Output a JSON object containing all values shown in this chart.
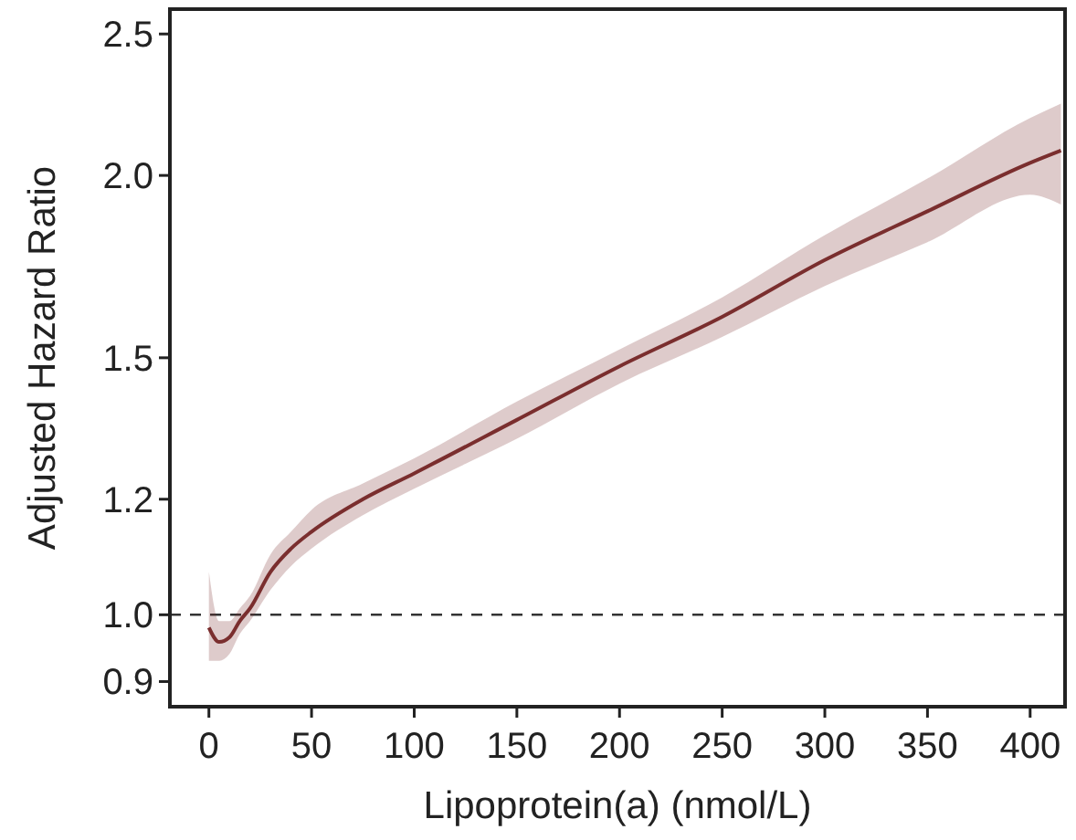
{
  "chart_data": {
    "type": "line",
    "xlabel": "Lipoprotein(a) (nmol/L)",
    "ylabel": "Adjusted Hazard Ratio",
    "log": "y",
    "xlim": [
      -19,
      417
    ],
    "ylim": [
      0.865,
      2.6
    ],
    "xticks": [
      0,
      50,
      100,
      150,
      200,
      250,
      300,
      350,
      400
    ],
    "yticks": [
      0.9,
      {
        "value": 1,
        "label": "1.0"
      },
      1.2,
      1.5,
      {
        "value": 2,
        "label": "2.0"
      },
      2.5
    ],
    "grid": false,
    "marker": "none",
    "line_style": "solid",
    "ref_lines": [
      {
        "axis": "y",
        "value": 1.0,
        "line_style": "dashed",
        "color": "#333333"
      }
    ],
    "series": [
      {
        "color": "#7a2e2e",
        "x": [
          0,
          5,
          10,
          15,
          20,
          30,
          40,
          50,
          75,
          100,
          150,
          200,
          250,
          300,
          350,
          400,
          415
        ],
        "values": [
          0.98,
          0.958,
          0.965,
          0.99,
          1.01,
          1.07,
          1.11,
          1.14,
          1.2,
          1.25,
          1.36,
          1.48,
          1.6,
          1.75,
          1.89,
          2.04,
          2.08
        ],
        "lower": [
          0.93,
          0.93,
          0.94,
          0.97,
          0.99,
          1.04,
          1.08,
          1.11,
          1.17,
          1.22,
          1.32,
          1.44,
          1.55,
          1.68,
          1.8,
          1.94,
          1.91
        ],
        "upper": [
          1.07,
          0.99,
          0.99,
          1.01,
          1.03,
          1.1,
          1.14,
          1.18,
          1.23,
          1.28,
          1.4,
          1.52,
          1.65,
          1.82,
          1.99,
          2.19,
          2.24
        ]
      }
    ]
  }
}
